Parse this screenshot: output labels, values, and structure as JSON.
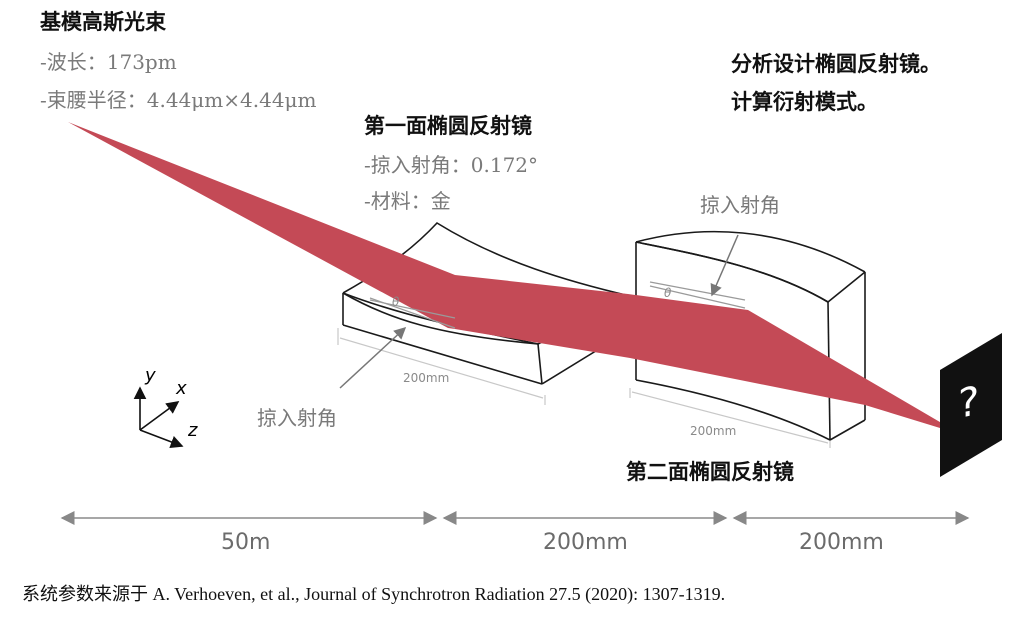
{
  "source": {
    "title": "基模高斯光束",
    "params": [
      "-波长：173pm",
      "-束腰半径：4.44μm×4.44μm"
    ]
  },
  "mirror1": {
    "title": "第一面椭圆反射镜",
    "params": [
      "-掠入射角：0.172°",
      "-材料：金"
    ],
    "length_label": "200mm",
    "angle_symbol": "θ",
    "angle_label": "掠入射角"
  },
  "mirror2": {
    "title": "第二面椭圆反射镜",
    "length_label": "200mm",
    "angle_symbol": "θ",
    "angle_label": "掠入射角"
  },
  "goal": {
    "lines": [
      "分析设计椭圆反射镜。",
      "计算衍射模式。"
    ]
  },
  "detector": {
    "symbol": "?"
  },
  "axes": {
    "y": "y",
    "x": "x",
    "z": "z"
  },
  "distances": [
    "50m",
    "200mm",
    "200mm"
  ],
  "citation": "系统参数来源于 A. Verhoeven, et al., Journal of Synchrotron Radiation 27.5 (2020): 1307-1319.",
  "colors": {
    "beam": "#c44a56",
    "line": "#222222",
    "gray": "#8a8a8a"
  }
}
